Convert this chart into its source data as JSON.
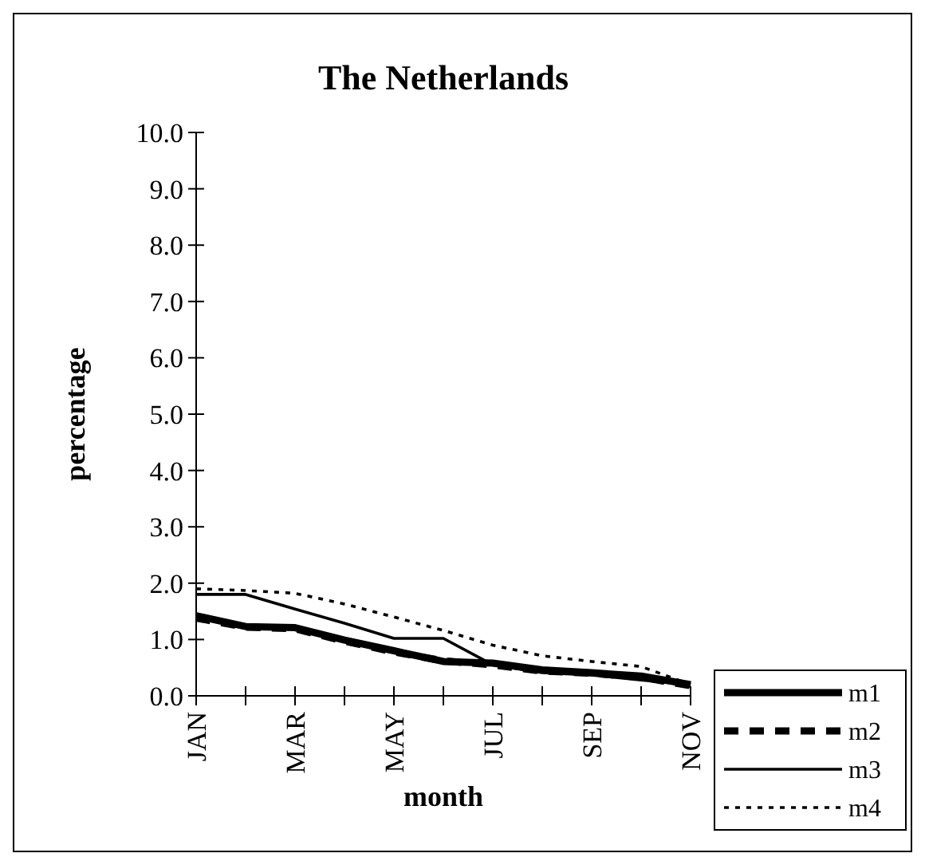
{
  "chart_data": {
    "type": "line",
    "title": "The Netherlands",
    "xlabel": "month",
    "ylabel": "percentage",
    "categories": [
      "JAN",
      null,
      "MAR",
      null,
      "MAY",
      null,
      "JUL",
      null,
      "SEP",
      null,
      "NOV"
    ],
    "series": [
      {
        "name": "m1",
        "color": "#000000",
        "line_style": "solid",
        "values": [
          1.42,
          1.23,
          1.21,
          0.99,
          0.8,
          0.61,
          0.58,
          0.46,
          0.41,
          0.35,
          0.2
        ]
      },
      {
        "name": "m2",
        "color": "#000000",
        "line_style": "dashed",
        "values": [
          1.38,
          1.22,
          1.19,
          0.97,
          0.78,
          0.62,
          0.55,
          0.44,
          0.4,
          0.33,
          0.18
        ]
      },
      {
        "name": "m3",
        "color": "#000000",
        "line_style": "solid",
        "values": [
          1.8,
          1.8,
          1.54,
          1.29,
          1.02,
          1.02,
          0.55,
          0.41,
          0.37,
          0.28,
          0.2
        ]
      },
      {
        "name": "m4",
        "color": "#000000",
        "line_style": "dotted",
        "values": [
          1.9,
          1.87,
          1.82,
          1.63,
          1.4,
          1.16,
          0.9,
          0.71,
          0.61,
          0.52,
          0.2
        ]
      }
    ],
    "ylim": [
      0,
      10
    ],
    "yticks": [
      {
        "value": 0,
        "label": "0.0"
      },
      {
        "value": 1,
        "label": "1.0"
      },
      {
        "value": 2,
        "label": "2.0"
      },
      {
        "value": 3,
        "label": "3.0"
      },
      {
        "value": 4,
        "label": "4.0"
      },
      {
        "value": 5,
        "label": "5.0"
      },
      {
        "value": 6,
        "label": "6.0"
      },
      {
        "value": 7,
        "label": "7.0"
      },
      {
        "value": 8,
        "label": "8.0"
      },
      {
        "value": 9,
        "label": "9.0"
      },
      {
        "value": 10,
        "label": "10.0"
      }
    ],
    "grid": false,
    "legend": "bottom right",
    "marker": "none"
  }
}
